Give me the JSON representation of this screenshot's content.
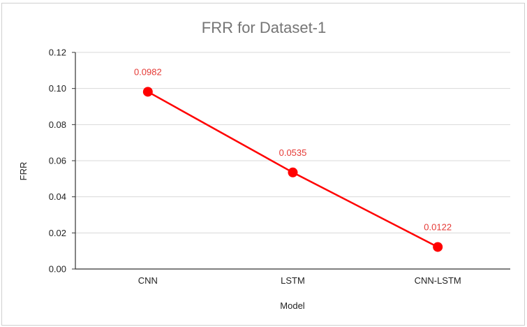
{
  "chart_data": {
    "type": "line",
    "title": "FRR for Dataset-1",
    "xlabel": "Model",
    "ylabel": "FRR",
    "categories": [
      "CNN",
      "LSTM",
      "CNN-LSTM"
    ],
    "series": [
      {
        "values": [
          0.0982,
          0.0535,
          0.0122
        ],
        "color": "#ff0000"
      }
    ],
    "data_labels": [
      "0.0982",
      "0.0535",
      "0.0122"
    ],
    "ylim": [
      0,
      0.12
    ],
    "yticks": [
      0.0,
      0.02,
      0.04,
      0.06,
      0.08,
      0.1,
      0.12
    ],
    "ytick_labels": [
      "0.00",
      "0.02",
      "0.04",
      "0.06",
      "0.08",
      "0.10",
      "0.12"
    ],
    "grid": true,
    "legend": "none",
    "colors": {
      "line": "#ff0000",
      "label": "#e53935",
      "grid": "#d9d9d9",
      "axis": "#333333",
      "title": "#757575"
    }
  }
}
